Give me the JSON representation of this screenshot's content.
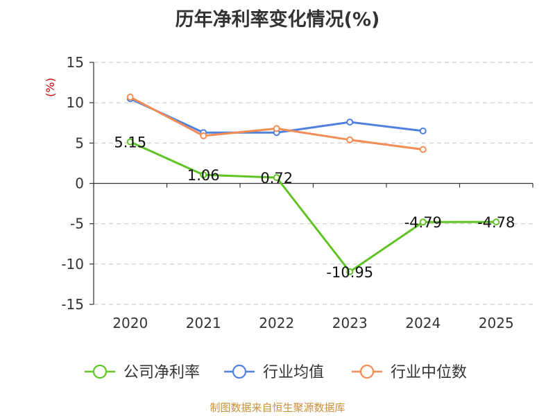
{
  "chart_data": {
    "type": "line",
    "title": "历年净利率变化情况(%)",
    "ylabel": "(%)",
    "xlabel": "",
    "categories": [
      "2020",
      "2021",
      "2022",
      "2023",
      "2024",
      "2025"
    ],
    "ylim": [
      -15,
      15
    ],
    "yticks": [
      15,
      10,
      5,
      0,
      -5,
      -10,
      -15
    ],
    "grid": true,
    "legend_position": "bottom",
    "series": [
      {
        "name": "公司净利率",
        "color": "#5ec323",
        "values": [
          5.15,
          1.06,
          0.72,
          -10.95,
          -4.79,
          -4.78
        ],
        "data_labels": [
          "5.15",
          "1.06",
          "0.72",
          "-10.95",
          "-4.79",
          "-4.78"
        ]
      },
      {
        "name": "行业均值",
        "color": "#4f80e0",
        "values": [
          10.5,
          6.3,
          6.3,
          7.6,
          6.5,
          null
        ]
      },
      {
        "name": "行业中位数",
        "color": "#f48d55",
        "values": [
          10.7,
          5.9,
          6.8,
          5.4,
          4.2,
          null
        ]
      }
    ]
  },
  "footer": "制图数据来自恒生聚源数据库"
}
